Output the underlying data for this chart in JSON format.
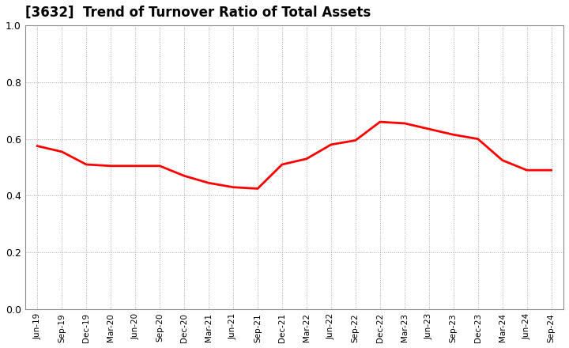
{
  "title": "[3632]  Trend of Turnover Ratio of Total Assets",
  "x_labels": [
    "Jun-19",
    "Sep-19",
    "Dec-19",
    "Mar-20",
    "Jun-20",
    "Sep-20",
    "Dec-20",
    "Mar-21",
    "Jun-21",
    "Sep-21",
    "Dec-21",
    "Mar-22",
    "Jun-22",
    "Sep-22",
    "Dec-22",
    "Mar-23",
    "Jun-23",
    "Sep-23",
    "Dec-23",
    "Mar-24",
    "Jun-24",
    "Sep-24"
  ],
  "y_values": [
    0.575,
    0.555,
    0.51,
    0.505,
    0.505,
    0.505,
    0.47,
    0.445,
    0.43,
    0.425,
    0.51,
    0.53,
    0.58,
    0.595,
    0.66,
    0.655,
    0.635,
    0.615,
    0.6,
    0.525,
    0.49,
    0.49
  ],
  "line_color": "#FF0000",
  "ylim": [
    0.0,
    1.0
  ],
  "yticks": [
    0.0,
    0.2,
    0.4,
    0.6,
    0.8,
    1.0
  ],
  "grid_color": "#AAAAAA",
  "background_color": "#FFFFFF",
  "title_fontsize": 12,
  "line_width": 2.0
}
